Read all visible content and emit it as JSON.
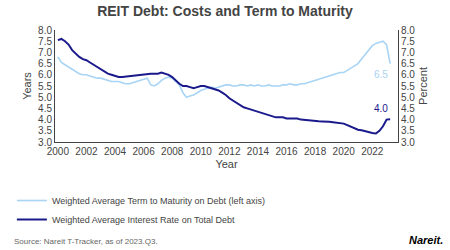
{
  "chart_data": {
    "type": "line",
    "title": "REIT Debt: Costs and Term to Maturity",
    "x_label": "Year",
    "y_label": "Years",
    "y2_label": "Percent",
    "source": "Source: Nareit T-Tracker, as of 2023.Q3.",
    "logo": "Nareit.",
    "legend": "bottom",
    "grid": false,
    "xlim": [
      1999.8,
      2023.8
    ],
    "xticks": [
      2000,
      2002,
      2004,
      2006,
      2008,
      2010,
      2012,
      2014,
      2016,
      2018,
      2020,
      2022
    ],
    "ylim": [
      3.0,
      8.0
    ],
    "yticks": [
      {
        "value": 3.0,
        "label": "3.0"
      },
      3.5,
      {
        "value": 4.0,
        "label": "4.0"
      },
      4.5,
      {
        "value": 5.0,
        "label": "5.0"
      },
      5.5,
      {
        "value": 6.0,
        "label": "6.0"
      },
      6.5,
      {
        "value": 7.0,
        "label": "7.0"
      },
      7.5,
      {
        "value": 8.0,
        "label": "8.0"
      }
    ],
    "y2lim": [
      3.0,
      8.0
    ],
    "y2ticks": [
      {
        "value": 3.0,
        "label": "3.0"
      },
      3.5,
      {
        "value": 4.0,
        "label": "4.0"
      },
      4.5,
      {
        "value": 5.0,
        "label": "5.0"
      },
      5.5,
      {
        "value": 6.0,
        "label": "6.0"
      },
      6.5,
      {
        "value": 7.0,
        "label": "7.0"
      },
      7.5,
      {
        "value": 8.0,
        "label": "8.0"
      }
    ],
    "x": [
      2000.0,
      2000.25,
      2000.5,
      2000.75,
      2001.0,
      2001.25,
      2001.5,
      2001.75,
      2002.0,
      2002.25,
      2002.5,
      2002.75,
      2003.0,
      2003.25,
      2003.5,
      2003.75,
      2004.0,
      2004.25,
      2004.5,
      2004.75,
      2005.0,
      2005.25,
      2005.5,
      2005.75,
      2006.0,
      2006.25,
      2006.5,
      2006.75,
      2007.0,
      2007.25,
      2007.5,
      2007.75,
      2008.0,
      2008.25,
      2008.5,
      2008.75,
      2009.0,
      2009.25,
      2009.5,
      2009.75,
      2010.0,
      2010.25,
      2010.5,
      2010.75,
      2011.0,
      2011.25,
      2011.5,
      2011.75,
      2012.0,
      2012.25,
      2012.5,
      2012.75,
      2013.0,
      2013.25,
      2013.5,
      2013.75,
      2014.0,
      2014.25,
      2014.5,
      2014.75,
      2015.0,
      2015.25,
      2015.5,
      2015.75,
      2016.0,
      2016.25,
      2016.5,
      2016.75,
      2017.0,
      2017.25,
      2017.5,
      2017.75,
      2018.0,
      2018.25,
      2018.5,
      2018.75,
      2019.0,
      2019.25,
      2019.5,
      2019.75,
      2020.0,
      2020.25,
      2020.5,
      2020.75,
      2021.0,
      2021.25,
      2021.5,
      2021.75,
      2022.0,
      2022.25,
      2022.5,
      2022.75,
      2023.0,
      2023.25
    ],
    "series": [
      {
        "name": "Weighted Average Term to Maturity on Debt (left axis)",
        "color": "#a8d4f5",
        "axis": "y",
        "values": [
          6.8,
          6.55,
          6.45,
          6.35,
          6.25,
          6.15,
          6.05,
          6.0,
          6.0,
          5.95,
          5.9,
          5.85,
          5.85,
          5.8,
          5.75,
          5.7,
          5.7,
          5.7,
          5.65,
          5.6,
          5.6,
          5.65,
          5.7,
          5.75,
          5.8,
          5.85,
          5.55,
          5.5,
          5.6,
          5.75,
          5.85,
          5.9,
          5.85,
          5.7,
          5.55,
          5.2,
          5.0,
          5.05,
          5.1,
          5.2,
          5.3,
          5.35,
          5.4,
          5.45,
          5.4,
          5.45,
          5.5,
          5.55,
          5.55,
          5.5,
          5.5,
          5.55,
          5.55,
          5.5,
          5.55,
          5.5,
          5.55,
          5.5,
          5.5,
          5.55,
          5.5,
          5.5,
          5.5,
          5.55,
          5.55,
          5.6,
          5.55,
          5.55,
          5.6,
          5.6,
          5.65,
          5.7,
          5.75,
          5.8,
          5.85,
          5.9,
          5.95,
          6.0,
          6.05,
          6.1,
          6.1,
          6.2,
          6.3,
          6.4,
          6.5,
          6.7,
          6.9,
          7.1,
          7.3,
          7.4,
          7.45,
          7.5,
          7.35,
          6.5
        ]
      },
      {
        "name": "Weighted Average Interest Rate on Total Debt",
        "color": "#1a1a8c",
        "axis": "y2",
        "values": [
          7.55,
          7.6,
          7.5,
          7.35,
          7.1,
          6.95,
          6.8,
          6.7,
          6.65,
          6.55,
          6.45,
          6.35,
          6.25,
          6.15,
          6.05,
          6.0,
          5.95,
          5.9,
          5.9,
          5.92,
          5.95,
          5.95,
          5.98,
          6.0,
          6.0,
          6.05,
          6.05,
          6.05,
          6.05,
          6.1,
          6.05,
          6.0,
          5.9,
          5.75,
          5.6,
          5.5,
          5.5,
          5.45,
          5.4,
          5.45,
          5.5,
          5.5,
          5.45,
          5.4,
          5.35,
          5.3,
          5.2,
          5.1,
          4.95,
          4.85,
          4.75,
          4.65,
          4.55,
          4.5,
          4.45,
          4.4,
          4.35,
          4.3,
          4.25,
          4.2,
          4.15,
          4.1,
          4.1,
          4.1,
          4.05,
          4.05,
          4.05,
          4.05,
          4.0,
          3.98,
          3.97,
          3.95,
          3.95,
          3.93,
          3.92,
          3.92,
          3.9,
          3.88,
          3.85,
          3.82,
          3.82,
          3.75,
          3.68,
          3.62,
          3.55,
          3.52,
          3.48,
          3.42,
          3.4,
          3.38,
          3.5,
          3.7,
          4.0,
          4.02
        ]
      }
    ],
    "annotations": [
      {
        "text": "6.5",
        "x": 2023.25,
        "y": 6.5,
        "axis": "y",
        "color": "#a8d4f5"
      },
      {
        "text": "4.0",
        "x": 2023.25,
        "y": 4.02,
        "axis": "y2",
        "color": "#1a1a8c"
      }
    ]
  }
}
